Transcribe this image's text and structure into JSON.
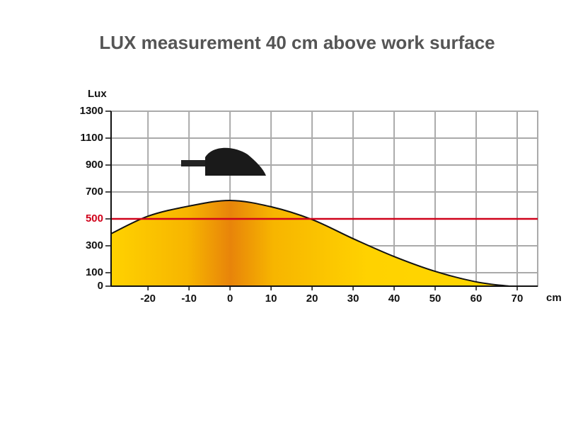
{
  "chart_data": {
    "type": "area",
    "title": "LUX measurement 40 cm above work surface",
    "y_label": "Lux",
    "x_label": "cm",
    "x": [
      -29,
      -20,
      -10,
      0,
      10,
      20,
      30,
      40,
      50,
      60,
      68
    ],
    "values": [
      390,
      520,
      595,
      637,
      590,
      495,
      353,
      220,
      110,
      32,
      0
    ],
    "color": "#f7c600",
    "line_color": "#111111",
    "xlim": [
      -29,
      75
    ],
    "ylim": [
      0,
      1300
    ],
    "xticks": [
      -20,
      -10,
      0,
      10,
      20,
      30,
      40,
      50,
      60,
      70
    ],
    "yticks": [
      0,
      100,
      300,
      500,
      700,
      900,
      1100,
      1300
    ],
    "threshold": {
      "value": 500,
      "color": "#d0021b"
    },
    "grid": true
  }
}
